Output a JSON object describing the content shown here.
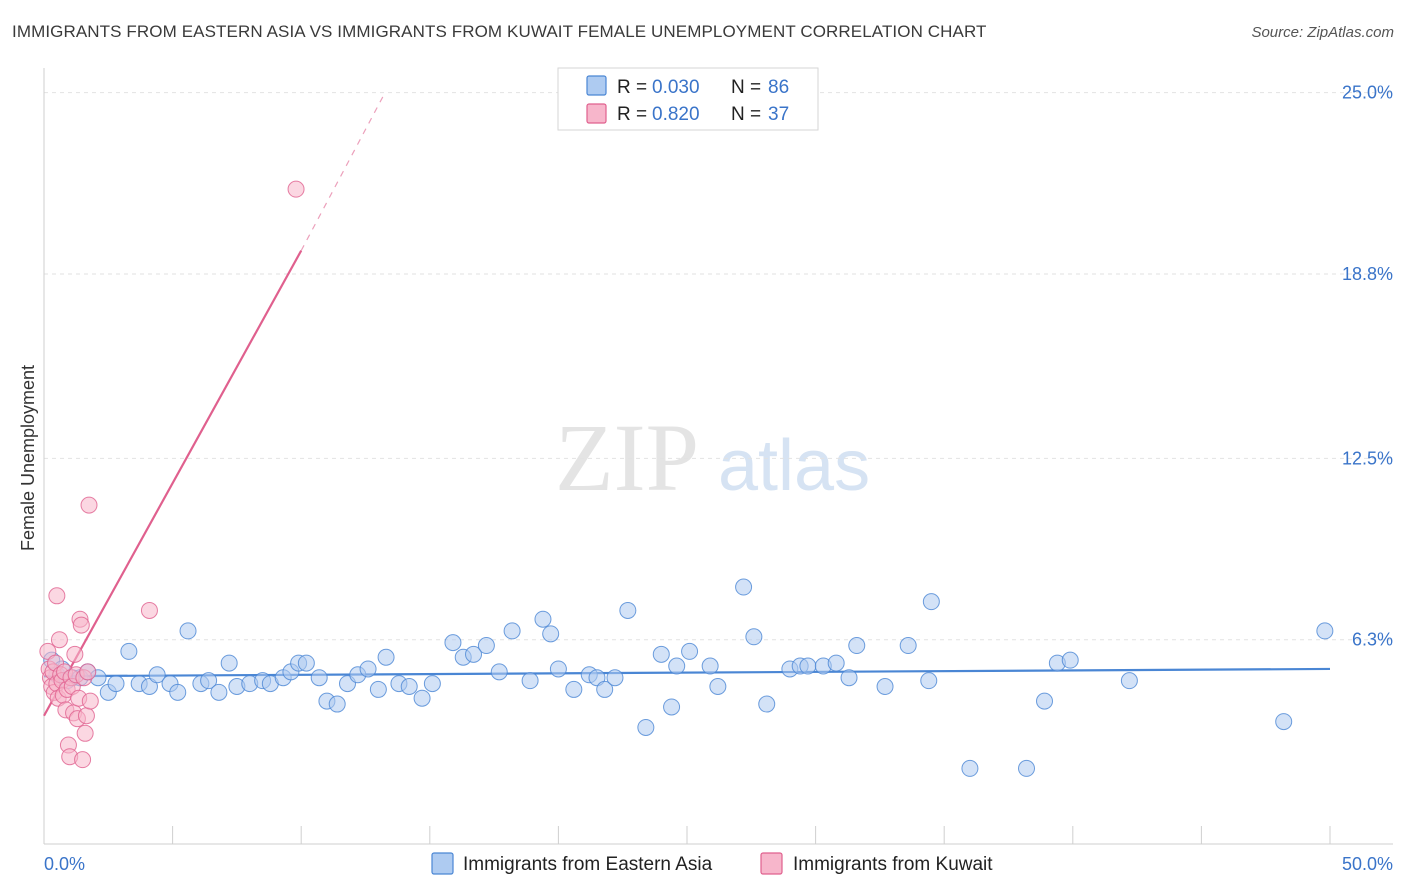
{
  "header": {
    "title": "IMMIGRANTS FROM EASTERN ASIA VS IMMIGRANTS FROM KUWAIT FEMALE UNEMPLOYMENT CORRELATION CHART",
    "source": "Source: ZipAtlas.com"
  },
  "watermark": {
    "zip": "ZIP",
    "atlas": "atlas"
  },
  "legend": {
    "r_label": "R =",
    "n_label": "N =",
    "rows": [
      {
        "name": "Immigrants from Eastern Asia",
        "r": "0.030",
        "n": "86",
        "color": "#8db7ea"
      },
      {
        "name": "Immigrants from Kuwait",
        "r": "0.820",
        "n": "37",
        "color": "#f4a6bf"
      }
    ]
  },
  "chart_data": {
    "type": "scatter",
    "title": "IMMIGRANTS FROM EASTERN ASIA VS IMMIGRANTS FROM KUWAIT FEMALE UNEMPLOYMENT CORRELATION CHART",
    "xlabel": "",
    "ylabel": "Female Unemployment",
    "xlim": [
      0,
      50
    ],
    "ylim": [
      0,
      25.5
    ],
    "x_tick_labels": [
      "0.0%",
      "50.0%"
    ],
    "y_ticks": [
      6.3,
      12.5,
      18.8,
      25.0
    ],
    "y_tick_labels": [
      "6.3%",
      "12.5%",
      "18.8%",
      "25.0%"
    ],
    "grid": true,
    "series": [
      {
        "name": "Immigrants from Eastern Asia",
        "color": "#4a86d4",
        "fill": "#aecbf1",
        "trend": {
          "x": [
            0,
            50
          ],
          "y": [
            5.05,
            5.3
          ]
        },
        "points": [
          [
            0.3,
            5.6
          ],
          [
            0.5,
            5.1
          ],
          [
            0.7,
            5.3
          ],
          [
            0.9,
            4.9
          ],
          [
            1.1,
            5.0
          ],
          [
            1.4,
            5.0
          ],
          [
            1.7,
            5.2
          ],
          [
            2.1,
            5.0
          ],
          [
            2.5,
            4.5
          ],
          [
            2.8,
            4.8
          ],
          [
            3.3,
            5.9
          ],
          [
            3.7,
            4.8
          ],
          [
            4.1,
            4.7
          ],
          [
            4.4,
            5.1
          ],
          [
            4.9,
            4.8
          ],
          [
            5.2,
            4.5
          ],
          [
            5.6,
            6.6
          ],
          [
            6.1,
            4.8
          ],
          [
            6.4,
            4.9
          ],
          [
            6.8,
            4.5
          ],
          [
            7.2,
            5.5
          ],
          [
            7.5,
            4.7
          ],
          [
            8.0,
            4.8
          ],
          [
            8.5,
            4.9
          ],
          [
            8.8,
            4.8
          ],
          [
            9.3,
            5.0
          ],
          [
            9.6,
            5.2
          ],
          [
            9.9,
            5.5
          ],
          [
            10.2,
            5.5
          ],
          [
            10.7,
            5.0
          ],
          [
            11.0,
            4.2
          ],
          [
            11.4,
            4.1
          ],
          [
            11.8,
            4.8
          ],
          [
            12.2,
            5.1
          ],
          [
            12.6,
            5.3
          ],
          [
            13.0,
            4.6
          ],
          [
            13.3,
            5.7
          ],
          [
            13.8,
            4.8
          ],
          [
            14.2,
            4.7
          ],
          [
            14.7,
            4.3
          ],
          [
            15.1,
            4.8
          ],
          [
            15.9,
            6.2
          ],
          [
            16.3,
            5.7
          ],
          [
            16.7,
            5.8
          ],
          [
            17.2,
            6.1
          ],
          [
            17.7,
            5.2
          ],
          [
            18.2,
            6.6
          ],
          [
            18.9,
            4.9
          ],
          [
            19.4,
            7.0
          ],
          [
            19.7,
            6.5
          ],
          [
            20.0,
            5.3
          ],
          [
            20.6,
            4.6
          ],
          [
            21.2,
            5.1
          ],
          [
            21.5,
            5.0
          ],
          [
            21.8,
            4.6
          ],
          [
            22.2,
            5.0
          ],
          [
            22.7,
            7.3
          ],
          [
            23.4,
            3.3
          ],
          [
            24.0,
            5.8
          ],
          [
            24.4,
            4.0
          ],
          [
            24.6,
            5.4
          ],
          [
            25.1,
            5.9
          ],
          [
            25.9,
            5.4
          ],
          [
            26.2,
            4.7
          ],
          [
            27.2,
            8.1
          ],
          [
            27.6,
            6.4
          ],
          [
            28.1,
            4.1
          ],
          [
            29.0,
            5.3
          ],
          [
            29.4,
            5.4
          ],
          [
            29.7,
            5.4
          ],
          [
            30.3,
            5.4
          ],
          [
            30.8,
            5.5
          ],
          [
            31.3,
            5.0
          ],
          [
            31.6,
            6.1
          ],
          [
            32.7,
            4.7
          ],
          [
            33.6,
            6.1
          ],
          [
            34.4,
            4.9
          ],
          [
            34.5,
            7.6
          ],
          [
            36.0,
            1.9
          ],
          [
            38.2,
            1.9
          ],
          [
            38.9,
            4.2
          ],
          [
            39.4,
            5.5
          ],
          [
            39.9,
            5.6
          ],
          [
            42.2,
            4.9
          ],
          [
            48.2,
            3.5
          ],
          [
            49.8,
            6.6
          ]
        ]
      },
      {
        "name": "Immigrants from Kuwait",
        "color": "#e0608e",
        "fill": "#f7b6cb",
        "trend": {
          "x": [
            0,
            10
          ],
          "y": [
            3.7,
            19.6
          ]
        },
        "trend_dashed": {
          "x": [
            10,
            13.2
          ],
          "y": [
            19.6,
            24.9
          ]
        },
        "points": [
          [
            0.15,
            5.9
          ],
          [
            0.2,
            5.3
          ],
          [
            0.25,
            5.0
          ],
          [
            0.3,
            4.7
          ],
          [
            0.35,
            5.2
          ],
          [
            0.4,
            4.5
          ],
          [
            0.45,
            5.5
          ],
          [
            0.5,
            4.8
          ],
          [
            0.55,
            4.3
          ],
          [
            0.6,
            6.3
          ],
          [
            0.65,
            5.1
          ],
          [
            0.7,
            4.9
          ],
          [
            0.75,
            4.4
          ],
          [
            0.8,
            5.2
          ],
          [
            0.85,
            3.9
          ],
          [
            0.9,
            4.6
          ],
          [
            0.95,
            2.7
          ],
          [
            1.0,
            2.3
          ],
          [
            1.05,
            5.0
          ],
          [
            1.1,
            4.7
          ],
          [
            1.15,
            3.8
          ],
          [
            1.2,
            5.8
          ],
          [
            1.25,
            5.1
          ],
          [
            1.3,
            3.6
          ],
          [
            1.35,
            4.3
          ],
          [
            1.4,
            7.0
          ],
          [
            1.45,
            6.8
          ],
          [
            1.5,
            2.2
          ],
          [
            1.55,
            5.0
          ],
          [
            1.6,
            3.1
          ],
          [
            1.65,
            3.7
          ],
          [
            1.7,
            5.2
          ],
          [
            1.75,
            10.9
          ],
          [
            1.8,
            4.2
          ],
          [
            0.5,
            7.8
          ],
          [
            4.1,
            7.3
          ],
          [
            9.8,
            21.7
          ]
        ]
      }
    ]
  }
}
